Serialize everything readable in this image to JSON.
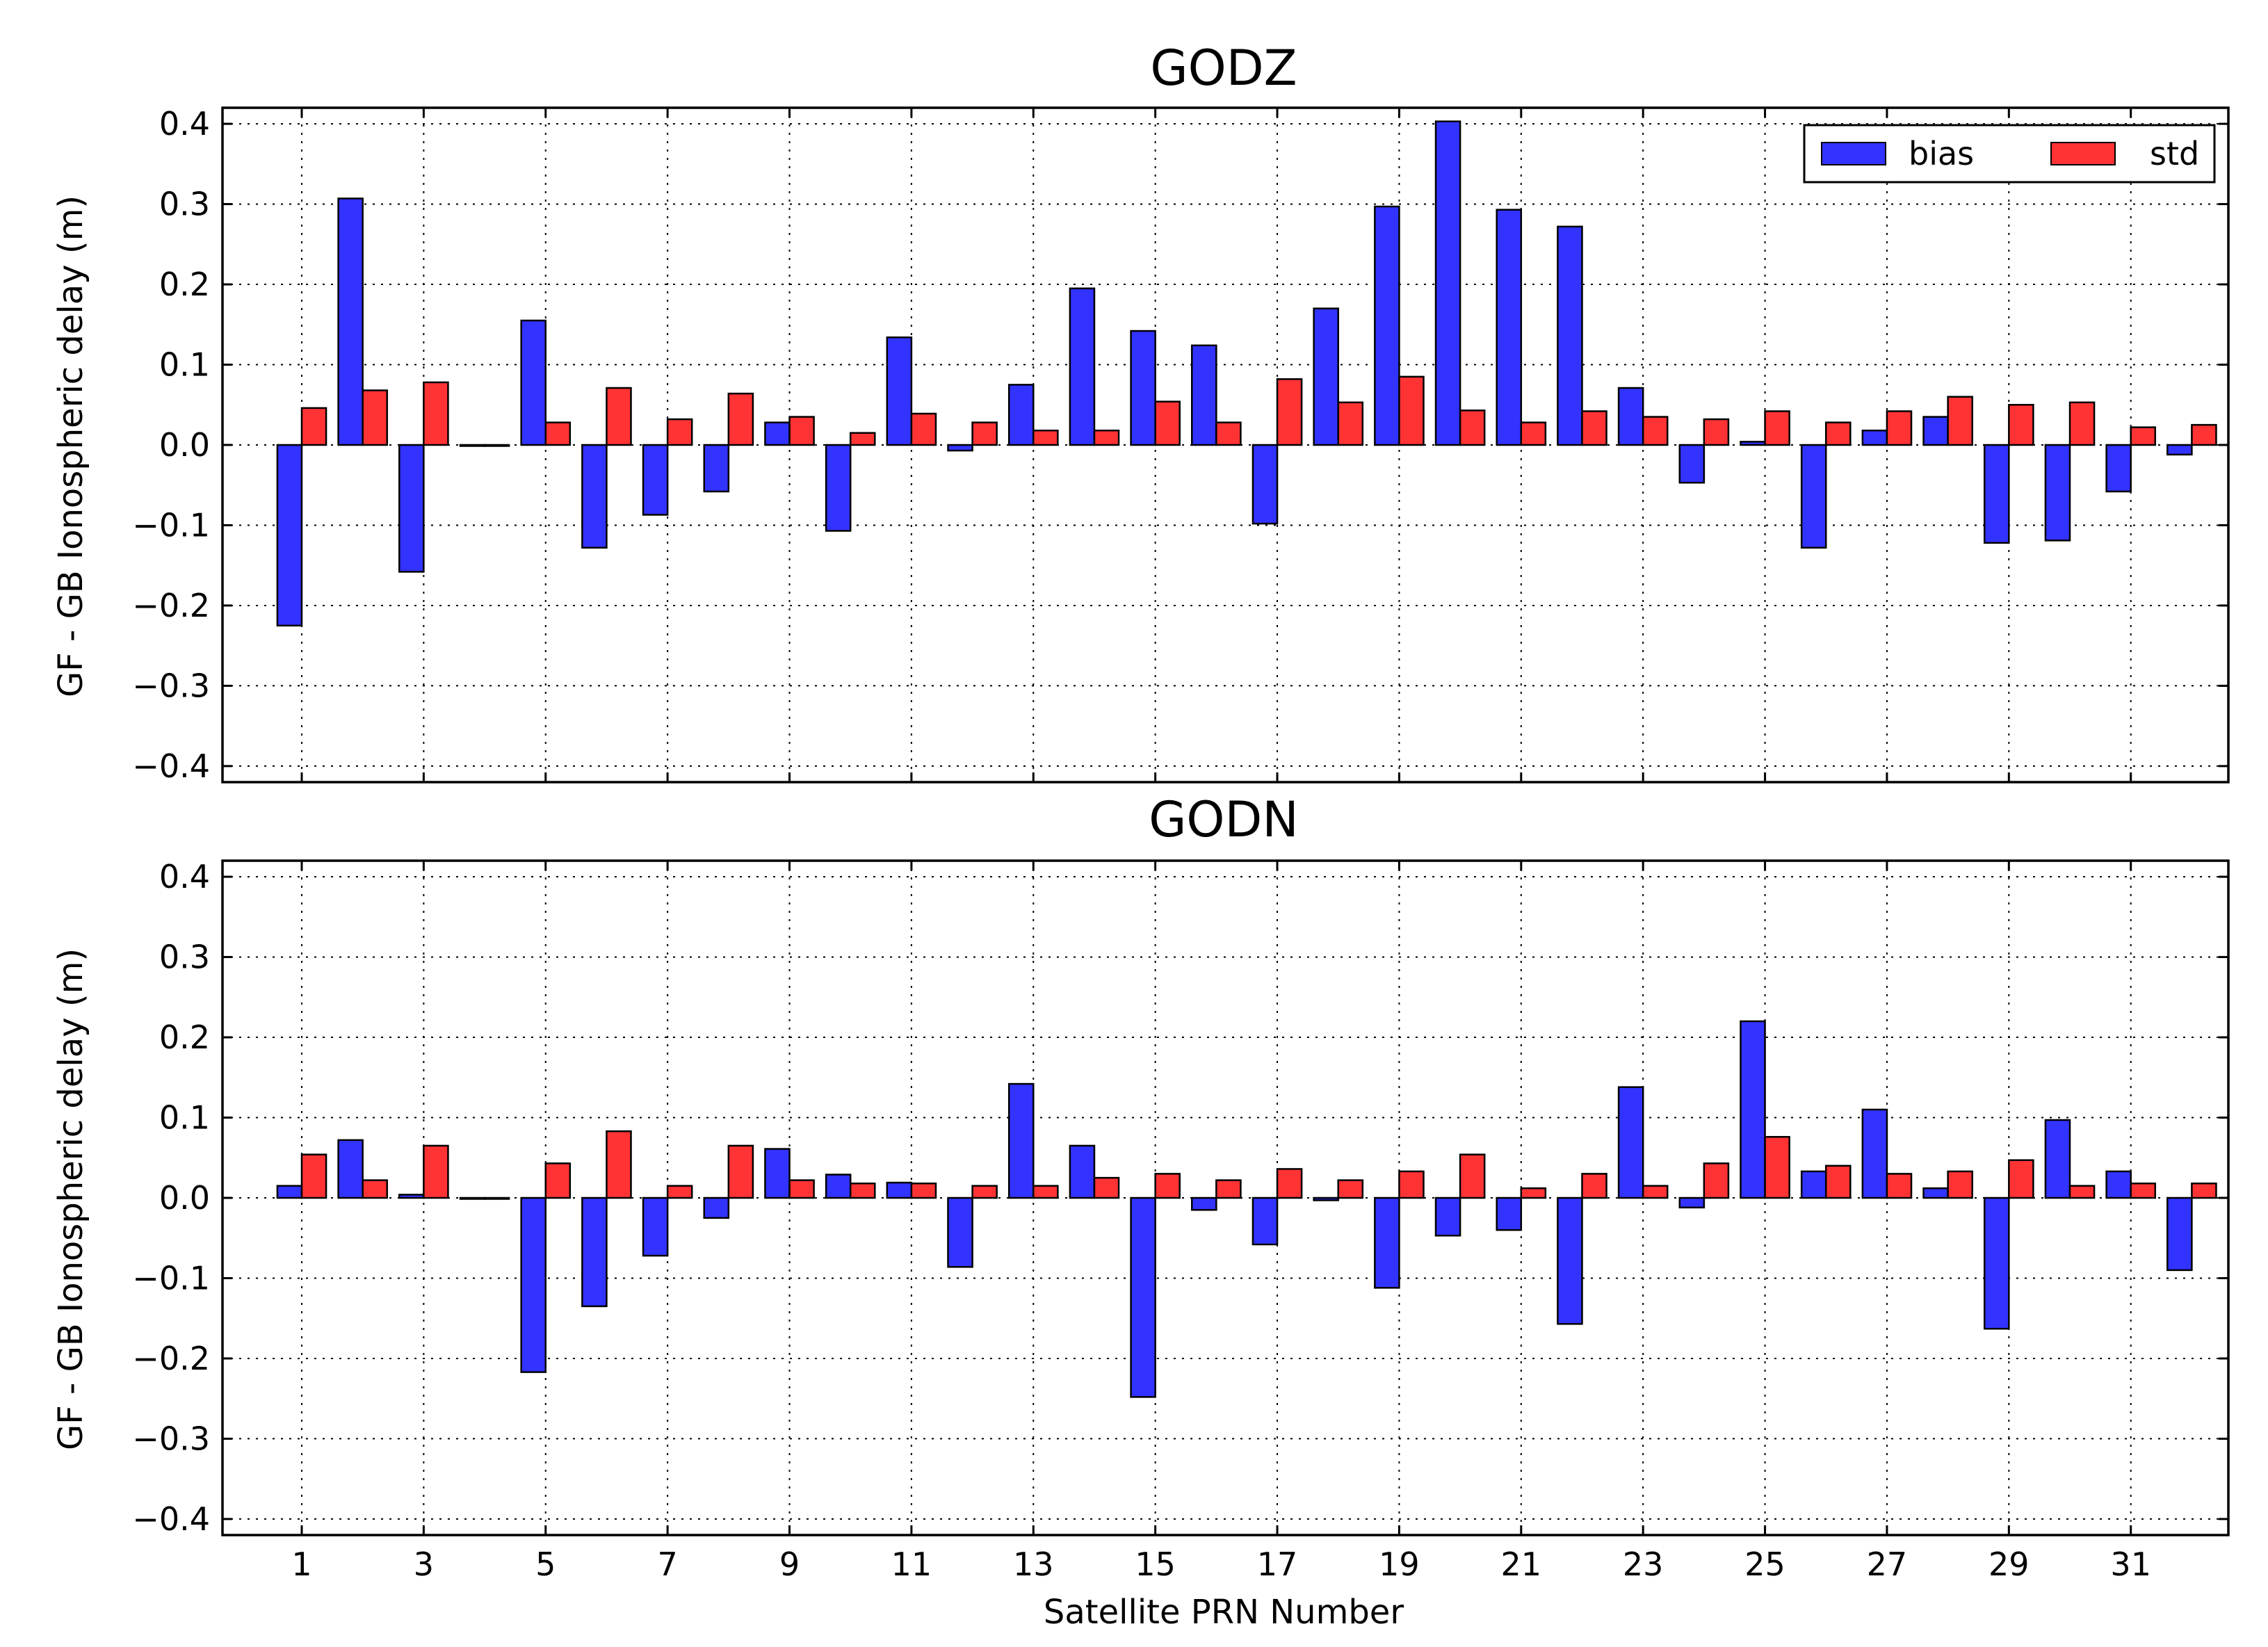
{
  "xlabel": "Satellite PRN Number",
  "colors": {
    "bias": "#3333ff",
    "std": "#ff3333",
    "grid": "#000000"
  },
  "chart_data": [
    {
      "type": "bar",
      "title": "GODZ",
      "ylabel": "GF - GB Ionospheric delay (m)",
      "xlabel": "Satellite PRN Number",
      "ylim": [
        -0.42,
        0.42
      ],
      "yticks": [
        "−0.4",
        "−0.3",
        "−0.2",
        "−0.1",
        "0.0",
        "0.1",
        "0.2",
        "0.3",
        "0.4"
      ],
      "xticks": [
        "1",
        "3",
        "5",
        "7",
        "9",
        "11",
        "13",
        "15",
        "17",
        "19",
        "21",
        "23",
        "25",
        "27",
        "29",
        "31"
      ],
      "grid": true,
      "legend": "top-right",
      "categories": [
        1,
        2,
        3,
        4,
        5,
        6,
        7,
        8,
        9,
        10,
        11,
        12,
        13,
        14,
        15,
        16,
        17,
        18,
        19,
        20,
        21,
        22,
        23,
        24,
        25,
        26,
        27,
        28,
        29,
        30,
        31,
        32
      ],
      "series": [
        {
          "name": "bias",
          "color": "#3333ff",
          "values": [
            -0.225,
            0.307,
            -0.158,
            0.0,
            0.155,
            -0.128,
            -0.087,
            -0.058,
            0.028,
            -0.107,
            0.134,
            -0.007,
            0.075,
            0.195,
            0.142,
            0.124,
            -0.098,
            0.17,
            0.297,
            0.403,
            0.293,
            0.272,
            0.071,
            -0.047,
            0.004,
            -0.128,
            0.018,
            0.035,
            -0.122,
            -0.119,
            -0.058,
            -0.012
          ]
        },
        {
          "name": "std",
          "color": "#ff3333",
          "values": [
            0.046,
            0.068,
            0.078,
            0.0,
            0.028,
            0.071,
            0.032,
            0.064,
            0.035,
            0.015,
            0.039,
            0.028,
            0.018,
            0.018,
            0.054,
            0.028,
            0.082,
            0.053,
            0.085,
            0.043,
            0.028,
            0.042,
            0.035,
            0.032,
            0.042,
            0.028,
            0.042,
            0.06,
            0.05,
            0.053,
            0.022,
            0.025
          ]
        }
      ]
    },
    {
      "type": "bar",
      "title": "GODN",
      "ylabel": "GF - GB Ionospheric delay (m)",
      "xlabel": "Satellite PRN Number",
      "ylim": [
        -0.42,
        0.42
      ],
      "yticks": [
        "−0.4",
        "−0.3",
        "−0.2",
        "−0.1",
        "0.0",
        "0.1",
        "0.2",
        "0.3",
        "0.4"
      ],
      "xticks": [
        "1",
        "3",
        "5",
        "7",
        "9",
        "11",
        "13",
        "15",
        "17",
        "19",
        "21",
        "23",
        "25",
        "27",
        "29",
        "31"
      ],
      "grid": true,
      "categories": [
        1,
        2,
        3,
        4,
        5,
        6,
        7,
        8,
        9,
        10,
        11,
        12,
        13,
        14,
        15,
        16,
        17,
        18,
        19,
        20,
        21,
        22,
        23,
        24,
        25,
        26,
        27,
        28,
        29,
        30,
        31,
        32
      ],
      "series": [
        {
          "name": "bias",
          "color": "#3333ff",
          "values": [
            0.015,
            0.072,
            0.004,
            0.0,
            -0.217,
            -0.135,
            -0.072,
            -0.025,
            0.061,
            0.029,
            0.019,
            -0.086,
            0.142,
            0.065,
            -0.248,
            -0.015,
            -0.058,
            -0.003,
            -0.112,
            -0.047,
            -0.04,
            -0.157,
            0.138,
            -0.012,
            0.22,
            0.033,
            0.11,
            0.012,
            -0.163,
            0.097,
            0.033,
            -0.09
          ]
        },
        {
          "name": "std",
          "color": "#ff3333",
          "values": [
            0.054,
            0.022,
            0.065,
            0.0,
            0.043,
            0.083,
            0.015,
            0.065,
            0.022,
            0.018,
            0.018,
            0.015,
            0.015,
            0.025,
            0.03,
            0.022,
            0.036,
            0.022,
            0.033,
            0.054,
            0.012,
            0.03,
            0.015,
            0.043,
            0.076,
            0.04,
            0.03,
            0.033,
            0.047,
            0.015,
            0.018,
            0.018
          ]
        }
      ]
    }
  ]
}
